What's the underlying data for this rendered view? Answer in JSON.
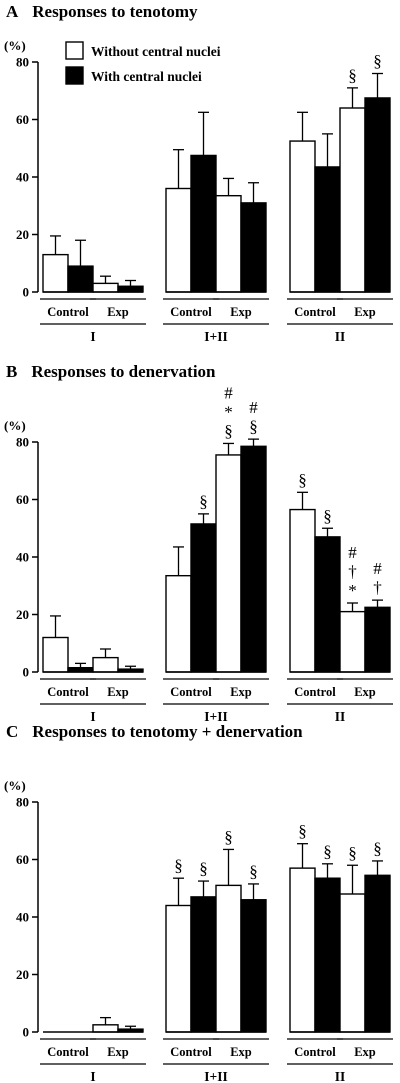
{
  "chart_data": [
    {
      "type": "bar",
      "panel_letter": "A",
      "title": "Responses to tenotomy",
      "ylabel": "(%)",
      "ylim": [
        0,
        80
      ],
      "yticks": [
        0,
        20,
        40,
        60,
        80
      ],
      "legend": {
        "placement": "top-left",
        "entries": [
          {
            "name": "Without central nuclei",
            "color": "#ffffff"
          },
          {
            "name": "With central nuclei",
            "color": "#000000"
          }
        ]
      },
      "groups": [
        {
          "label": "I",
          "subgroups": [
            {
              "label": "Control",
              "values": [
                13,
                9
              ],
              "errors": [
                6.5,
                9
              ],
              "marks": [
                "",
                ""
              ]
            },
            {
              "label": "Exp",
              "values": [
                3,
                2
              ],
              "errors": [
                2.5,
                2
              ],
              "marks": [
                "",
                ""
              ]
            }
          ]
        },
        {
          "label": "I+II",
          "subgroups": [
            {
              "label": "Control",
              "values": [
                36,
                47.5
              ],
              "errors": [
                13.5,
                15
              ],
              "marks": [
                "",
                ""
              ]
            },
            {
              "label": "Exp",
              "values": [
                33.5,
                31
              ],
              "errors": [
                6,
                7
              ],
              "marks": [
                "",
                ""
              ]
            }
          ]
        },
        {
          "label": "II",
          "subgroups": [
            {
              "label": "Control",
              "values": [
                52.5,
                43.5
              ],
              "errors": [
                10,
                11.5
              ],
              "marks": [
                "",
                ""
              ]
            },
            {
              "label": "Exp",
              "values": [
                64,
                67.5
              ],
              "errors": [
                7,
                8.5
              ],
              "marks": [
                "§",
                "§"
              ]
            }
          ]
        }
      ]
    },
    {
      "type": "bar",
      "panel_letter": "B",
      "title": "Responses to denervation",
      "ylabel": "(%)",
      "ylim": [
        0,
        80
      ],
      "yticks": [
        0,
        20,
        40,
        60,
        80
      ],
      "groups": [
        {
          "label": "I",
          "subgroups": [
            {
              "label": "Control",
              "values": [
                12,
                1.5
              ],
              "errors": [
                7.5,
                1.5
              ],
              "marks": [
                "",
                ""
              ]
            },
            {
              "label": "Exp",
              "values": [
                5,
                1
              ],
              "errors": [
                3,
                1
              ],
              "marks": [
                "",
                ""
              ]
            }
          ]
        },
        {
          "label": "I+II",
          "subgroups": [
            {
              "label": "Control",
              "values": [
                33.5,
                51.5
              ],
              "errors": [
                10,
                3.5
              ],
              "marks": [
                "",
                "§"
              ]
            },
            {
              "label": "Exp",
              "values": [
                75.5,
                78.5
              ],
              "errors": [
                4,
                2.5
              ],
              "marks": [
                "#\n*\n§",
                "#\n§"
              ]
            }
          ]
        },
        {
          "label": "II",
          "subgroups": [
            {
              "label": "Control",
              "values": [
                56.5,
                47
              ],
              "errors": [
                6,
                3
              ],
              "marks": [
                "§",
                "§"
              ]
            },
            {
              "label": "Exp",
              "values": [
                21,
                22.5
              ],
              "errors": [
                3,
                2.5
              ],
              "marks": [
                "#\n†\n*",
                "#\n†"
              ]
            }
          ]
        }
      ]
    },
    {
      "type": "bar",
      "panel_letter": "C",
      "title": "Responses to tenotomy + denervation",
      "ylabel": "(%)",
      "ylim": [
        0,
        80
      ],
      "yticks": [
        0,
        20,
        40,
        60,
        80
      ],
      "groups": [
        {
          "label": "I",
          "subgroups": [
            {
              "label": "Control",
              "values": [
                0,
                0
              ],
              "errors": [
                0,
                0
              ],
              "marks": [
                "",
                ""
              ]
            },
            {
              "label": "Exp",
              "values": [
                2.5,
                1
              ],
              "errors": [
                2.5,
                1
              ],
              "marks": [
                "",
                ""
              ]
            }
          ]
        },
        {
          "label": "I+II",
          "subgroups": [
            {
              "label": "Control",
              "values": [
                44,
                47
              ],
              "errors": [
                9.5,
                5.5
              ],
              "marks": [
                "§",
                "§"
              ]
            },
            {
              "label": "Exp",
              "values": [
                51,
                46
              ],
              "errors": [
                12.5,
                5.5
              ],
              "marks": [
                "§",
                "§"
              ]
            }
          ]
        },
        {
          "label": "II",
          "subgroups": [
            {
              "label": "Control",
              "values": [
                57,
                53.5
              ],
              "errors": [
                8.5,
                5
              ],
              "marks": [
                "§",
                "§"
              ]
            },
            {
              "label": "Exp",
              "values": [
                48,
                54.5
              ],
              "errors": [
                10,
                5
              ],
              "marks": [
                "§",
                "§"
              ]
            }
          ]
        }
      ]
    }
  ]
}
